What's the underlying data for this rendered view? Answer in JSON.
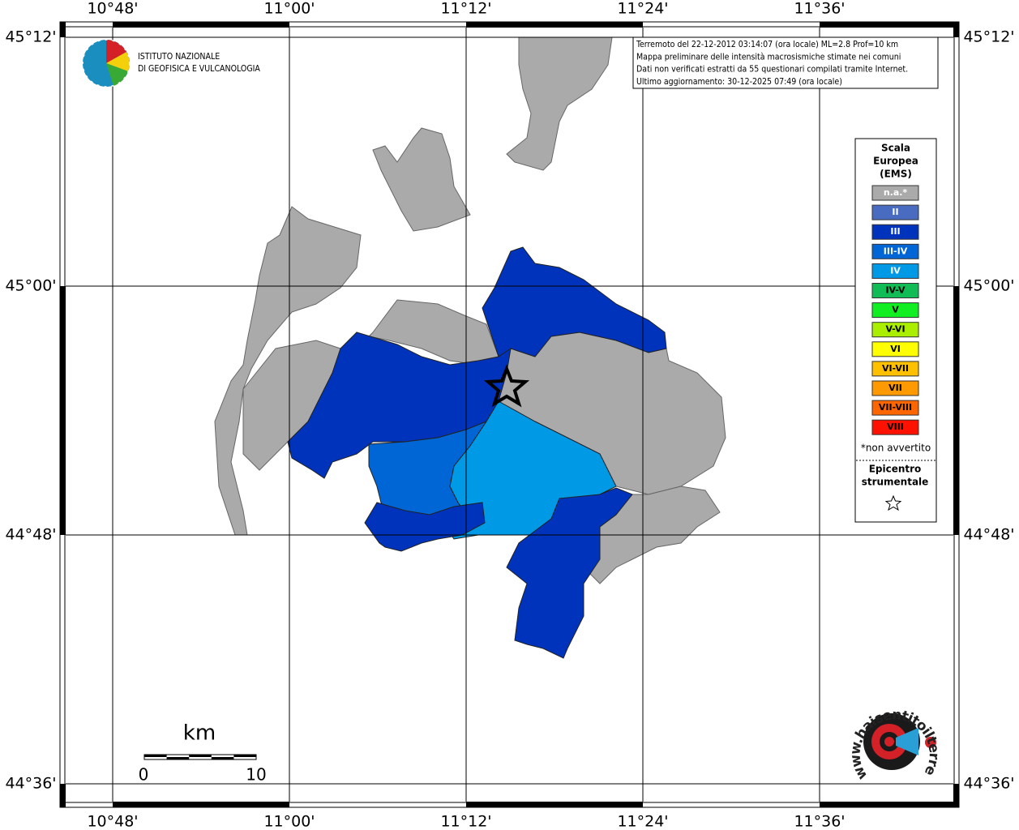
{
  "header": {
    "institute": [
      "ISTITUTO NAZIONALE",
      "DI GEOFISICA E VULCANOLOGIA"
    ]
  },
  "info": [
    "Terremoto del 22-12-2012 03:14:07 (ora locale) ML=2.8 Prof=10 km",
    "Mappa preliminare delle intensità macrosismiche stimate nei comuni",
    "Dati non verificati estratti da 55 questionari compilati tramite Internet.",
    "Ultimo aggiornamento: 30-12-2025 07:49 (ora locale)"
  ],
  "grid": {
    "lon_labels": [
      "10°48'",
      "11°00'",
      "11°12'",
      "11°24'",
      "11°36'"
    ],
    "lat_labels": [
      "45°12'",
      "45°00'",
      "44°48'",
      "44°36'"
    ]
  },
  "legend": {
    "title": [
      "Scala",
      "Europea",
      "(EMS)"
    ],
    "items": [
      {
        "label": "n.a.*",
        "color": "#aaaaaa"
      },
      {
        "label": "II",
        "color": "#4a6cc0"
      },
      {
        "label": "III",
        "color": "#0033bb"
      },
      {
        "label": "III-IV",
        "color": "#0066d6"
      },
      {
        "label": "IV",
        "color": "#0099e6"
      },
      {
        "label": "IV-V",
        "color": "#11bb55"
      },
      {
        "label": "V",
        "color": "#11ee22"
      },
      {
        "label": "V-VI",
        "color": "#aaee00"
      },
      {
        "label": "VI",
        "color": "#ffff00"
      },
      {
        "label": "VI-VII",
        "color": "#ffc000"
      },
      {
        "label": "VII",
        "color": "#ff9900"
      },
      {
        "label": "VII-VIII",
        "color": "#ff6600"
      },
      {
        "label": "VIII",
        "color": "#ff1100"
      }
    ],
    "note": "*non avvertito",
    "epicenter": [
      "Epicentro",
      "strumentale"
    ]
  },
  "scale_bar": {
    "unit": "km",
    "start": "0",
    "end": "10"
  },
  "site": "www.haisentitoilterremoto.it"
}
